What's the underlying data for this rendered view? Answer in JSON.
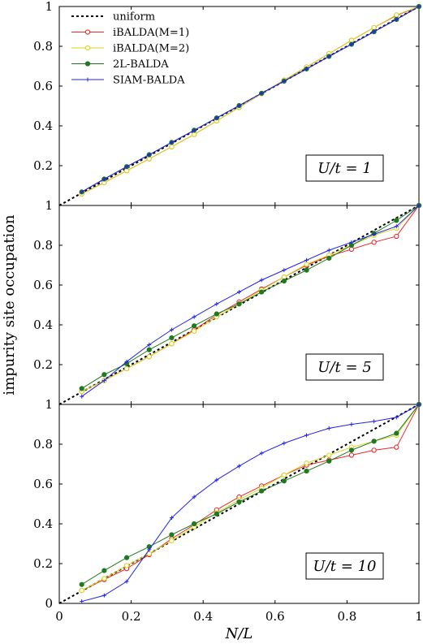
{
  "chart_data": {
    "type": "line",
    "xlabel": "N/L",
    "ylabel": "impurity site occupation",
    "xlim": [
      0,
      1
    ],
    "ylim": [
      0,
      1
    ],
    "x_ticks": [
      "0",
      "0.2",
      "0.4",
      "0.6",
      "0.8",
      "1"
    ],
    "y_ticks": [
      "0",
      "0.2",
      "0.4",
      "0.6",
      "0.8",
      "1"
    ],
    "legend": {
      "location": "top-left of top panel",
      "entries": [
        "uniform",
        "iBALDA(M=1)",
        "iBALDA(M=2)",
        "2L-BALDA",
        "SIAM-BALDA"
      ]
    },
    "series_styles": [
      {
        "name": "uniform",
        "color": "#000000",
        "marker": "none",
        "dash": "3,3"
      },
      {
        "name": "iBALDA(M=1)",
        "color": "#e8292e",
        "marker": "open-circle"
      },
      {
        "name": "iBALDA(M=2)",
        "color": "#d9d61e",
        "marker": "open-circle"
      },
      {
        "name": "2L-BALDA",
        "color": "#1f7a1f",
        "marker": "filled-circle"
      },
      {
        "name": "SIAM-BALDA",
        "color": "#2323e8",
        "marker": "plus"
      }
    ],
    "x": [
      0.0625,
      0.125,
      0.1875,
      0.25,
      0.3125,
      0.375,
      0.4375,
      0.5,
      0.5625,
      0.625,
      0.6875,
      0.75,
      0.8125,
      0.875,
      0.9375,
      1.0
    ],
    "panels": [
      {
        "label": "U/t = 1",
        "uniform": [
          [
            0,
            0
          ],
          [
            1,
            1
          ]
        ],
        "series": [
          {
            "name": "iBALDA(M=1)",
            "values": [
              0.058,
              0.115,
              0.175,
              0.234,
              0.295,
              0.357,
              0.425,
              0.493,
              0.562,
              0.63,
              0.696,
              0.763,
              0.83,
              0.894,
              0.955,
              1.0
            ]
          },
          {
            "name": "iBALDA(M=2)",
            "values": [
              0.058,
              0.115,
              0.175,
              0.234,
              0.295,
              0.357,
              0.425,
              0.493,
              0.562,
              0.63,
              0.696,
              0.763,
              0.83,
              0.894,
              0.958,
              1.0
            ]
          },
          {
            "name": "2L-BALDA",
            "values": [
              0.068,
              0.133,
              0.195,
              0.255,
              0.317,
              0.378,
              0.44,
              0.502,
              0.564,
              0.625,
              0.686,
              0.749,
              0.81,
              0.873,
              0.935,
              1.0
            ]
          },
          {
            "name": "SIAM-BALDA",
            "values": [
              0.068,
              0.133,
              0.195,
              0.255,
              0.317,
              0.378,
              0.44,
              0.502,
              0.564,
              0.625,
              0.686,
              0.749,
              0.81,
              0.873,
              0.935,
              1.0
            ]
          }
        ]
      },
      {
        "label": "U/t = 5",
        "uniform": [
          [
            0,
            0
          ],
          [
            1,
            1
          ]
        ],
        "series": [
          {
            "name": "iBALDA(M=1)",
            "values": [
              0.065,
              0.12,
              0.18,
              0.24,
              0.305,
              0.375,
              0.45,
              0.515,
              0.58,
              0.64,
              0.7,
              0.745,
              0.78,
              0.815,
              0.845,
              1.0
            ]
          },
          {
            "name": "iBALDA(M=2)",
            "values": [
              0.065,
              0.12,
              0.18,
              0.24,
              0.305,
              0.368,
              0.44,
              0.505,
              0.575,
              0.64,
              0.705,
              0.75,
              0.8,
              0.85,
              0.885,
              1.0
            ]
          },
          {
            "name": "2L-BALDA",
            "values": [
              0.08,
              0.15,
              0.205,
              0.275,
              0.335,
              0.395,
              0.455,
              0.505,
              0.565,
              0.62,
              0.675,
              0.735,
              0.8,
              0.86,
              0.925,
              1.0
            ]
          },
          {
            "name": "SIAM-BALDA",
            "values": [
              0.04,
              0.12,
              0.215,
              0.3,
              0.375,
              0.44,
              0.505,
              0.565,
              0.625,
              0.675,
              0.725,
              0.775,
              0.815,
              0.855,
              0.895,
              1.0
            ]
          }
        ]
      },
      {
        "label": "U/t = 10",
        "uniform": [
          [
            0,
            0
          ],
          [
            1,
            1
          ]
        ],
        "series": [
          {
            "name": "iBALDA(M=1)",
            "values": [
              0.065,
              0.12,
              0.175,
              0.245,
              0.325,
              0.395,
              0.47,
              0.535,
              0.59,
              0.645,
              0.695,
              0.72,
              0.745,
              0.77,
              0.785,
              1.0
            ]
          },
          {
            "name": "iBALDA(M=2)",
            "values": [
              0.065,
              0.125,
              0.19,
              0.25,
              0.315,
              0.385,
              0.455,
              0.52,
              0.58,
              0.645,
              0.705,
              0.745,
              0.785,
              0.815,
              0.845,
              1.0
            ]
          },
          {
            "name": "2L-BALDA",
            "values": [
              0.095,
              0.165,
              0.23,
              0.285,
              0.345,
              0.4,
              0.45,
              0.51,
              0.565,
              0.615,
              0.665,
              0.715,
              0.77,
              0.815,
              0.855,
              1.0
            ]
          },
          {
            "name": "SIAM-BALDA",
            "values": [
              0.01,
              0.04,
              0.11,
              0.27,
              0.43,
              0.535,
              0.62,
              0.69,
              0.755,
              0.805,
              0.845,
              0.88,
              0.9,
              0.915,
              0.935,
              1.0
            ]
          }
        ]
      }
    ]
  }
}
